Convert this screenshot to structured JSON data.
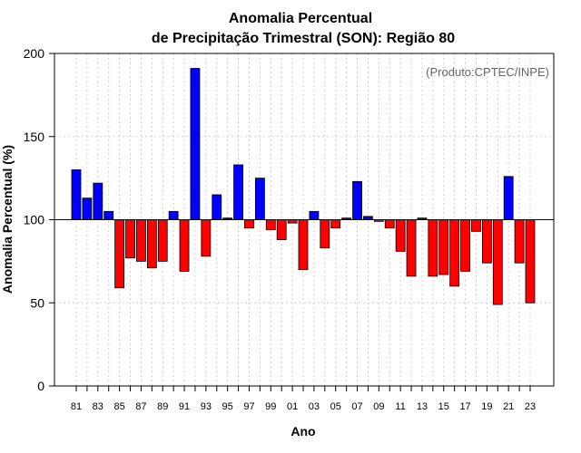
{
  "chart_data": {
    "type": "bar",
    "title": "Anomalia Percentual",
    "subtitle": "de Precipitação Trimestral (SON): Região 80",
    "xlabel": "Ano",
    "ylabel": "Anomalia Percentual (%)",
    "annotation": "(Produto:CPTEC/INPE)",
    "baseline": 100,
    "ylim": [
      0,
      200
    ],
    "yticks": [
      0,
      50,
      100,
      150,
      200
    ],
    "grid": true,
    "colors": {
      "above": "#0000ff",
      "below": "#ff0000",
      "outline": "#000000",
      "grid": "#d0d0d0"
    },
    "categories": [
      "1981",
      "1982",
      "1983",
      "1984",
      "1985",
      "1986",
      "1987",
      "1988",
      "1989",
      "1990",
      "1991",
      "1992",
      "1993",
      "1994",
      "1995",
      "1996",
      "1997",
      "1998",
      "1999",
      "2000",
      "2001",
      "2002",
      "2003",
      "2004",
      "2005",
      "2006",
      "2007",
      "2008",
      "2009",
      "2010",
      "2011",
      "2012",
      "2013",
      "2014",
      "2015",
      "2016",
      "2017",
      "2018",
      "2019",
      "2020",
      "2021",
      "2022",
      "2023"
    ],
    "tick_labels": [
      "81",
      "",
      "83",
      "",
      "85",
      "",
      "87",
      "",
      "89",
      "",
      "91",
      "",
      "93",
      "",
      "95",
      "",
      "97",
      "",
      "99",
      "",
      "01",
      "",
      "03",
      "",
      "05",
      "",
      "07",
      "",
      "09",
      "",
      "11",
      "",
      "13",
      "",
      "15",
      "",
      "17",
      "",
      "19",
      "",
      "21",
      "",
      "23"
    ],
    "values": [
      130,
      113,
      122,
      105,
      59,
      77,
      75,
      71,
      75,
      105,
      69,
      191,
      78,
      115,
      101,
      133,
      95,
      125,
      94,
      88,
      98,
      70,
      105,
      83,
      95,
      101,
      123,
      102,
      99,
      95,
      81,
      66,
      101,
      66,
      67,
      60,
      69,
      93,
      74,
      49,
      126,
      74,
      50
    ]
  }
}
